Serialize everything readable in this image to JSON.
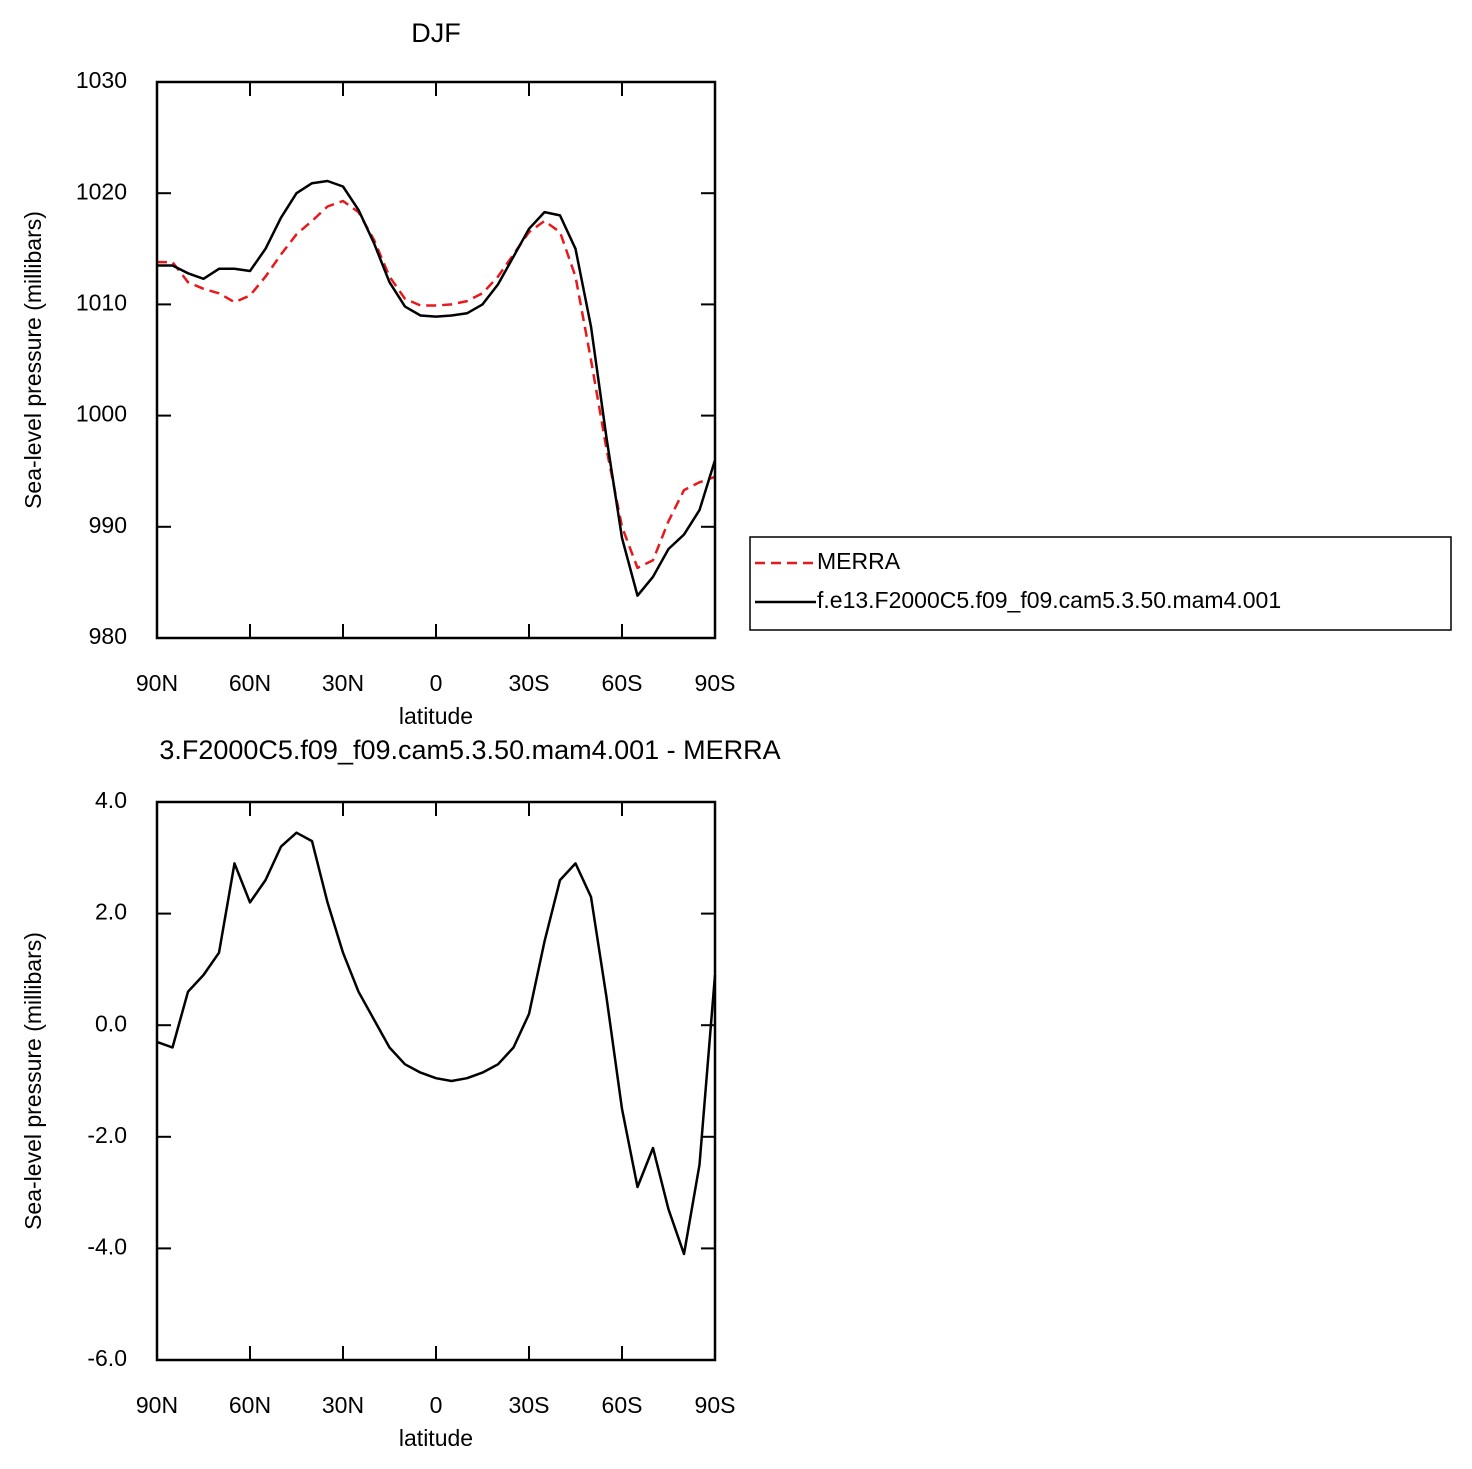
{
  "chart_data": [
    {
      "type": "line",
      "title": "DJF",
      "x_label": "latitude",
      "y_label": "Sea-level pressure (millibars)",
      "x": [
        90,
        85,
        80,
        75,
        70,
        65,
        60,
        55,
        50,
        45,
        40,
        35,
        30,
        25,
        20,
        15,
        10,
        5,
        0,
        -5,
        -10,
        -15,
        -20,
        -25,
        -30,
        -35,
        -40,
        -45,
        -50,
        -55,
        -60,
        -65,
        -70,
        -75,
        -80,
        -85,
        -90
      ],
      "xlim": [
        90,
        -90
      ],
      "xticks": [
        {
          "value": 90,
          "label": "90N"
        },
        {
          "value": 60,
          "label": "60N"
        },
        {
          "value": 30,
          "label": "30N"
        },
        0,
        {
          "value": -30,
          "label": "30S"
        },
        {
          "value": -60,
          "label": "60S"
        },
        {
          "value": -90,
          "label": "90S"
        }
      ],
      "ylim": [
        980,
        1030
      ],
      "yticks": [
        980,
        990,
        1000,
        1010,
        1020,
        1030
      ],
      "legend": "right",
      "series": [
        {
          "name": "MERRA",
          "color": "#e8191c",
          "line_style": "dashed",
          "values": [
            1013.8,
            1013.8,
            1012.0,
            1011.4,
            1011.0,
            1010.2,
            1010.8,
            1012.5,
            1014.5,
            1016.3,
            1017.5,
            1018.8,
            1019.3,
            1018.3,
            1015.8,
            1012.5,
            1010.5,
            1009.9,
            1009.9,
            1010.0,
            1010.3,
            1011.0,
            1012.5,
            1014.5,
            1016.5,
            1017.5,
            1016.5,
            1012.5,
            1005.0,
            997.0,
            990.0,
            986.3,
            987.0,
            990.5,
            993.3,
            994.0,
            994.5
          ]
        },
        {
          "name": "f.e13.F2000C5.f09_f09.cam5.3.50.mam4.001",
          "color": "#000000",
          "line_style": "solid",
          "values": [
            1013.5,
            1013.5,
            1012.8,
            1012.3,
            1013.2,
            1013.2,
            1013.0,
            1015.0,
            1017.8,
            1020.0,
            1020.9,
            1021.1,
            1020.6,
            1018.5,
            1015.5,
            1012.0,
            1009.8,
            1009.0,
            1008.9,
            1009.0,
            1009.2,
            1010.0,
            1011.8,
            1014.3,
            1016.8,
            1018.3,
            1018.0,
            1015.0,
            1008.0,
            998.0,
            989.0,
            983.8,
            985.5,
            988.0,
            989.3,
            991.5,
            996.0
          ]
        }
      ]
    },
    {
      "type": "line",
      "title": "3.F2000C5.f09_f09.cam5.3.50.mam4.001 - MERRA",
      "x_label": "latitude",
      "y_label": "Sea-level pressure (millibars)",
      "x": [
        90,
        85,
        80,
        75,
        70,
        65,
        60,
        55,
        50,
        45,
        40,
        35,
        30,
        25,
        20,
        15,
        10,
        5,
        0,
        -5,
        -10,
        -15,
        -20,
        -25,
        -30,
        -35,
        -40,
        -45,
        -50,
        -55,
        -60,
        -65,
        -70,
        -75,
        -80,
        -85,
        -90
      ],
      "xlim": [
        90,
        -90
      ],
      "xticks": [
        {
          "value": 90,
          "label": "90N"
        },
        {
          "value": 60,
          "label": "60N"
        },
        {
          "value": 30,
          "label": "30N"
        },
        0,
        {
          "value": -30,
          "label": "30S"
        },
        {
          "value": -60,
          "label": "60S"
        },
        {
          "value": -90,
          "label": "90S"
        }
      ],
      "ylim": [
        -6,
        4
      ],
      "yticks": [
        {
          "value": -6,
          "label": "-6.0"
        },
        {
          "value": -4,
          "label": "-4.0"
        },
        {
          "value": -2,
          "label": "-2.0"
        },
        {
          "value": 0,
          "label": "0.0"
        },
        {
          "value": 2,
          "label": "2.0"
        },
        {
          "value": 4,
          "label": "4.0"
        }
      ],
      "series": [
        {
          "color": "#000000",
          "line_style": "solid",
          "values": [
            -0.3,
            -0.4,
            0.6,
            0.9,
            1.3,
            2.9,
            2.2,
            2.6,
            3.2,
            3.45,
            3.3,
            2.2,
            1.3,
            0.6,
            0.1,
            -0.4,
            -0.7,
            -0.85,
            -0.95,
            -1.0,
            -0.95,
            -0.85,
            -0.7,
            -0.4,
            0.2,
            1.5,
            2.6,
            2.9,
            2.3,
            0.5,
            -1.5,
            -2.9,
            -2.2,
            -3.3,
            -4.1,
            -2.5,
            0.9
          ]
        }
      ]
    }
  ]
}
